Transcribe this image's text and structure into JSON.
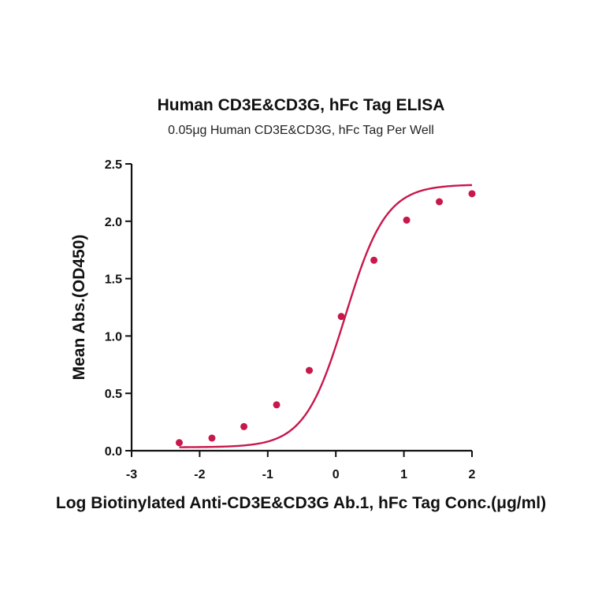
{
  "chart_data": {
    "type": "scatter",
    "title": "Human CD3E&CD3G, hFc Tag ELISA",
    "subtitle": "0.05μg Human CD3E&CD3G, hFc Tag Per Well",
    "xlabel": "Log Biotinylated Anti-CD3E&CD3G Ab.1, hFc Tag Conc.(μg/ml)",
    "ylabel": "Mean Abs.(OD450)",
    "xlim": [
      -3,
      2
    ],
    "ylim": [
      0,
      2.5
    ],
    "x_ticks": [
      -3,
      -2,
      -1,
      0,
      1,
      2
    ],
    "x_tick_labels": [
      "-3",
      "-2",
      "-1",
      "0",
      "1",
      "2"
    ],
    "y_ticks": [
      0,
      0.5,
      1.0,
      1.5,
      2.0,
      2.5
    ],
    "y_tick_labels": [
      "0.0",
      "0.5",
      "1.0",
      "1.5",
      "2.0",
      "2.5"
    ],
    "grid": false,
    "series": [
      {
        "color": "#c8174b",
        "x": [
          -2.3,
          -1.82,
          -1.35,
          -0.87,
          -0.39,
          0.08,
          0.56,
          1.04,
          1.52,
          2.0
        ],
        "y": [
          0.07,
          0.11,
          0.21,
          0.4,
          0.7,
          1.17,
          1.66,
          2.01,
          2.17,
          2.24
        ],
        "fit": "four-parameter logistic"
      }
    ]
  }
}
